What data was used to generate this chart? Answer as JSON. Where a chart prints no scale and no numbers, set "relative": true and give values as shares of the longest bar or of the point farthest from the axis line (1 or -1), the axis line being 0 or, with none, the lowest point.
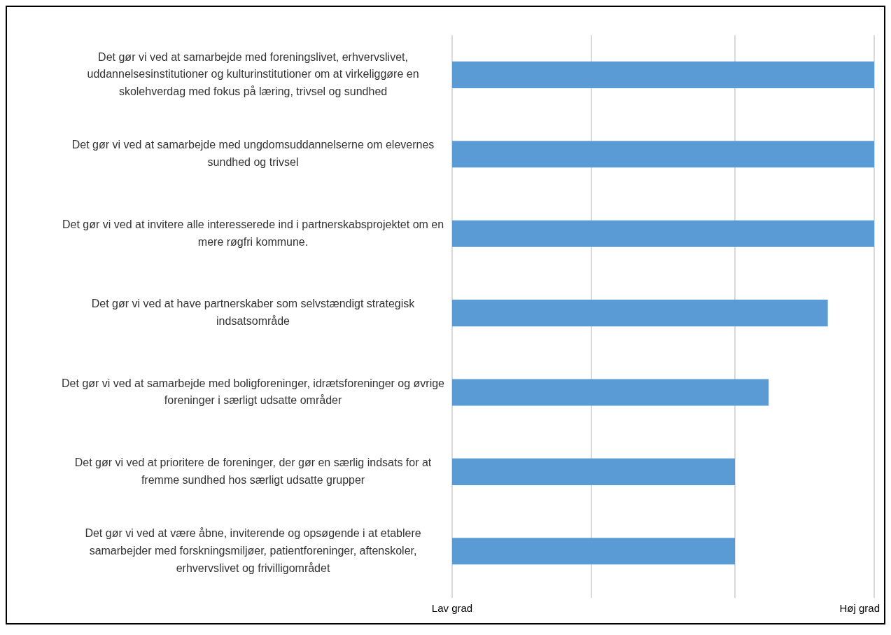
{
  "chart_data": {
    "type": "bar",
    "orientation": "horizontal",
    "categories": [
      "Det gør vi ved at samarbejde med foreningslivet, erhvervslivet, uddannelsesinstitutioner og kulturinstitutioner om at virkeliggøre en skolehverdag med fokus på læring, trivsel og sundhed",
      "Det gør vi ved at samarbejde med ungdomsuddannelserne om elevernes sundhed og trivsel",
      "Det gør vi ved at invitere alle interesserede ind i partnerskabsprojektet om en mere røgfri kommune.",
      "Det gør vi ved at have partnerskaber som selvstændigt strategisk indsatsområde",
      "Det gør vi ved at samarbejde med boligforeninger, idrætsforeninger og øvrige foreninger i særligt udsatte områder",
      "Det gør vi ved at prioritere de foreninger, der gør en særlig indsats for at fremme sundhed hos særligt udsatte grupper",
      "Det gør vi ved at være åbne, inviterende og opsøgende i at etablere samarbejder med forskningsmiljøer, patientforeninger, aftenskoler, erhvervslivet og frivilligområdet"
    ],
    "values": [
      1,
      1,
      1,
      0.89,
      0.75,
      0.67,
      0.67
    ],
    "color": "#5b9bd5",
    "relative": true,
    "annotations": [
      "Lav grad",
      "Høj grad"
    ],
    "ref_lines": [
      {
        "axis": "x",
        "value": 0.33,
        "color": "#d9d9d9"
      },
      {
        "axis": "x",
        "value": 0.67,
        "color": "#d9d9d9"
      }
    ],
    "grid": "x",
    "legend": false
  }
}
